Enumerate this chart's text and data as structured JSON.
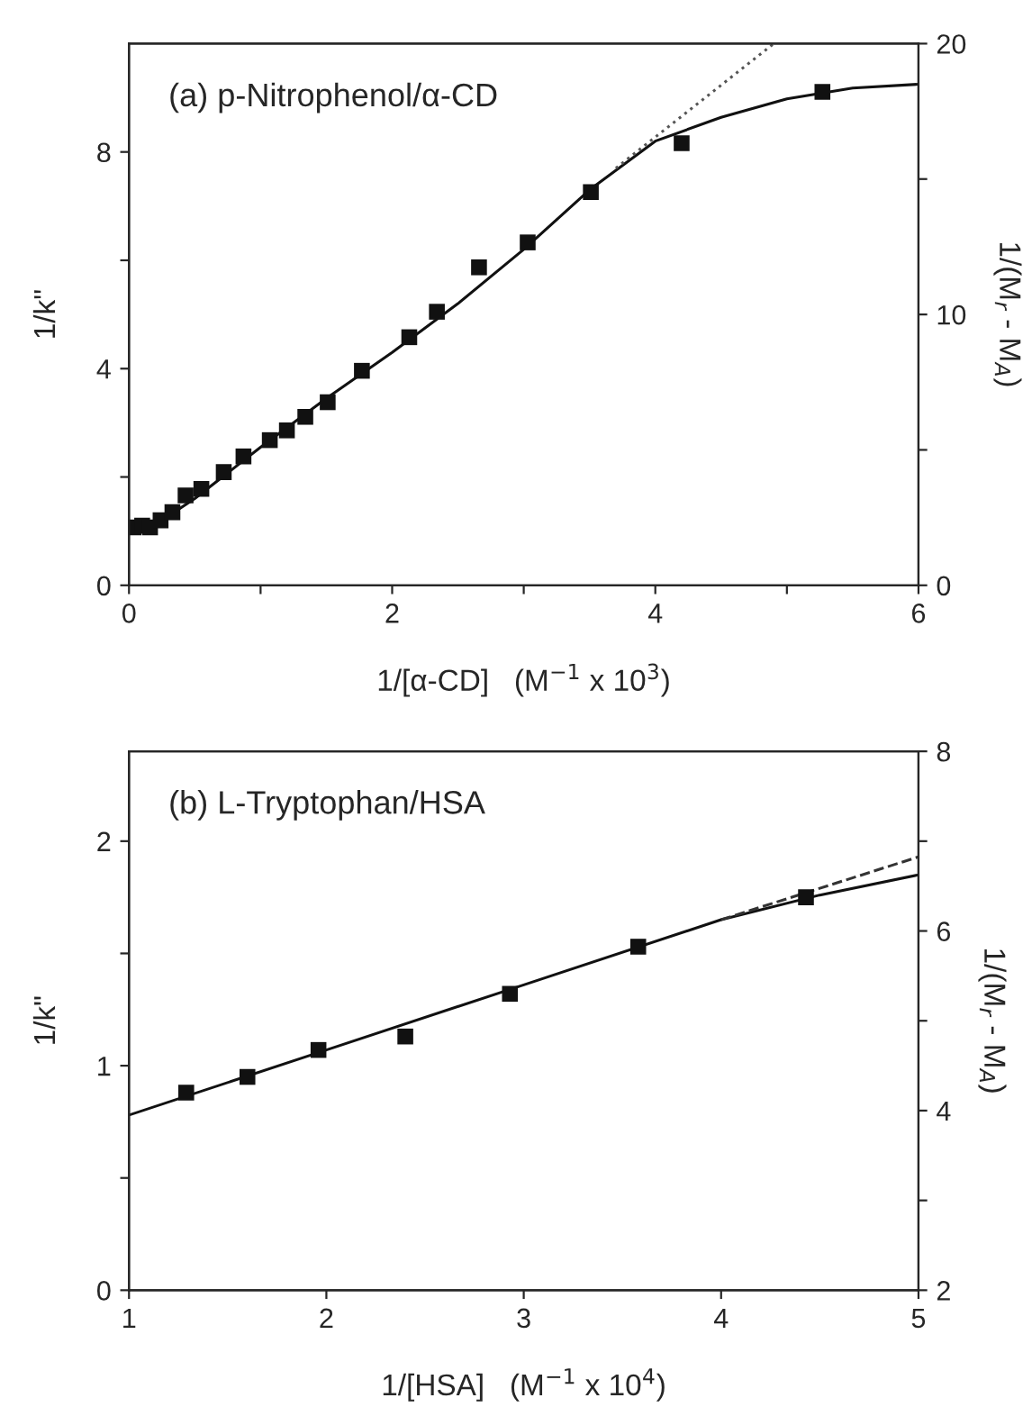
{
  "chart_data": [
    {
      "type": "scatter",
      "xlabel": "1/[α-CD]   (M$^{−1}$ x 10$^{3}$)",
      "ylabel": "1/k\"",
      "y2label": "1/(M$_{r}$ - M$_{A}$)",
      "annotations": [
        "(a) p-Nitrophenol/α-CD"
      ],
      "xlim": [
        0,
        6
      ],
      "xticks": [
        0,
        {
          "value": 1,
          "label": null
        },
        2,
        {
          "value": 3,
          "label": null
        },
        4,
        {
          "value": 5,
          "label": null
        },
        6
      ],
      "ylim": [
        0,
        10
      ],
      "yticks": [
        0,
        {
          "value": 2,
          "label": null
        },
        4,
        {
          "value": 6,
          "label": null
        },
        8
      ],
      "y2lim": [
        0,
        20
      ],
      "y2ticks": [
        0,
        {
          "value": 5,
          "label": null
        },
        10,
        {
          "value": 15,
          "label": null
        },
        20
      ],
      "grid": false,
      "legend": false,
      "series": [
        {
          "marker": "square",
          "color": "#111111",
          "x": [
            0.035,
            0.1,
            0.16,
            0.24,
            0.33,
            0.43,
            0.55,
            0.72,
            0.87,
            1.07,
            1.2,
            1.34,
            1.51,
            1.77,
            2.13,
            2.34,
            2.66,
            3.03,
            3.51,
            4.2,
            5.27
          ],
          "values": [
            1.07,
            1.1,
            1.07,
            1.2,
            1.35,
            1.66,
            1.78,
            2.09,
            2.38,
            2.68,
            2.86,
            3.11,
            3.38,
            3.96,
            4.58,
            5.05,
            5.87,
            6.33,
            7.26,
            8.16,
            9.11
          ]
        },
        {
          "type": "line",
          "line_style": "solid",
          "marker": "none",
          "color": "#111111",
          "x": [
            0,
            0.25,
            0.5,
            1,
            1.5,
            2,
            2.5,
            3,
            3.5,
            4,
            4.5,
            5,
            5.5,
            6
          ],
          "values": [
            1.0,
            1.2,
            1.6,
            2.55,
            3.45,
            4.3,
            5.2,
            6.2,
            7.3,
            8.2,
            8.64,
            8.98,
            9.18,
            9.25
          ]
        },
        {
          "type": "line",
          "line_style": "dotted",
          "marker": "none",
          "color": "#555555",
          "x": [
            3.7,
            4.9
          ],
          "values": [
            7.7,
            10
          ]
        }
      ]
    },
    {
      "type": "scatter",
      "xlabel": "1/[HSA]   (M$^{−1}$ x 10$^{4}$)",
      "ylabel": "1/k\"",
      "y2label": "1/(M$_{r}$ - M$_{A}$)",
      "annotations": [
        "(b) L-Tryptophan/HSA"
      ],
      "xlim": [
        1,
        5
      ],
      "xticks": [
        1,
        2,
        3,
        4,
        5
      ],
      "ylim": [
        0,
        2.4
      ],
      "yticks": [
        0,
        {
          "value": 0.5,
          "label": null
        },
        1,
        {
          "value": 1.5,
          "label": null
        },
        2
      ],
      "y2lim": [
        2,
        8
      ],
      "y2ticks": [
        2,
        {
          "value": 3,
          "label": null
        },
        4,
        {
          "value": 5,
          "label": null
        },
        6,
        {
          "value": 7,
          "label": null
        },
        8
      ],
      "grid": false,
      "legend": false,
      "series": [
        {
          "marker": "square",
          "color": "#111111",
          "x": [
            1.29,
            1.6,
            1.96,
            2.4,
            2.93,
            3.58,
            4.43
          ],
          "values": [
            0.88,
            0.95,
            1.07,
            1.13,
            1.32,
            1.53,
            1.75
          ]
        },
        {
          "type": "line",
          "line_style": "solid",
          "marker": "none",
          "color": "#111111",
          "x": [
            1,
            2,
            3,
            4,
            4.5,
            5
          ],
          "values": [
            0.78,
            1.07,
            1.36,
            1.65,
            1.76,
            1.85
          ]
        },
        {
          "type": "line",
          "line_style": "dashed",
          "marker": "none",
          "color": "#333333",
          "x": [
            4,
            5
          ],
          "values": [
            1.65,
            1.93
          ]
        }
      ]
    }
  ]
}
